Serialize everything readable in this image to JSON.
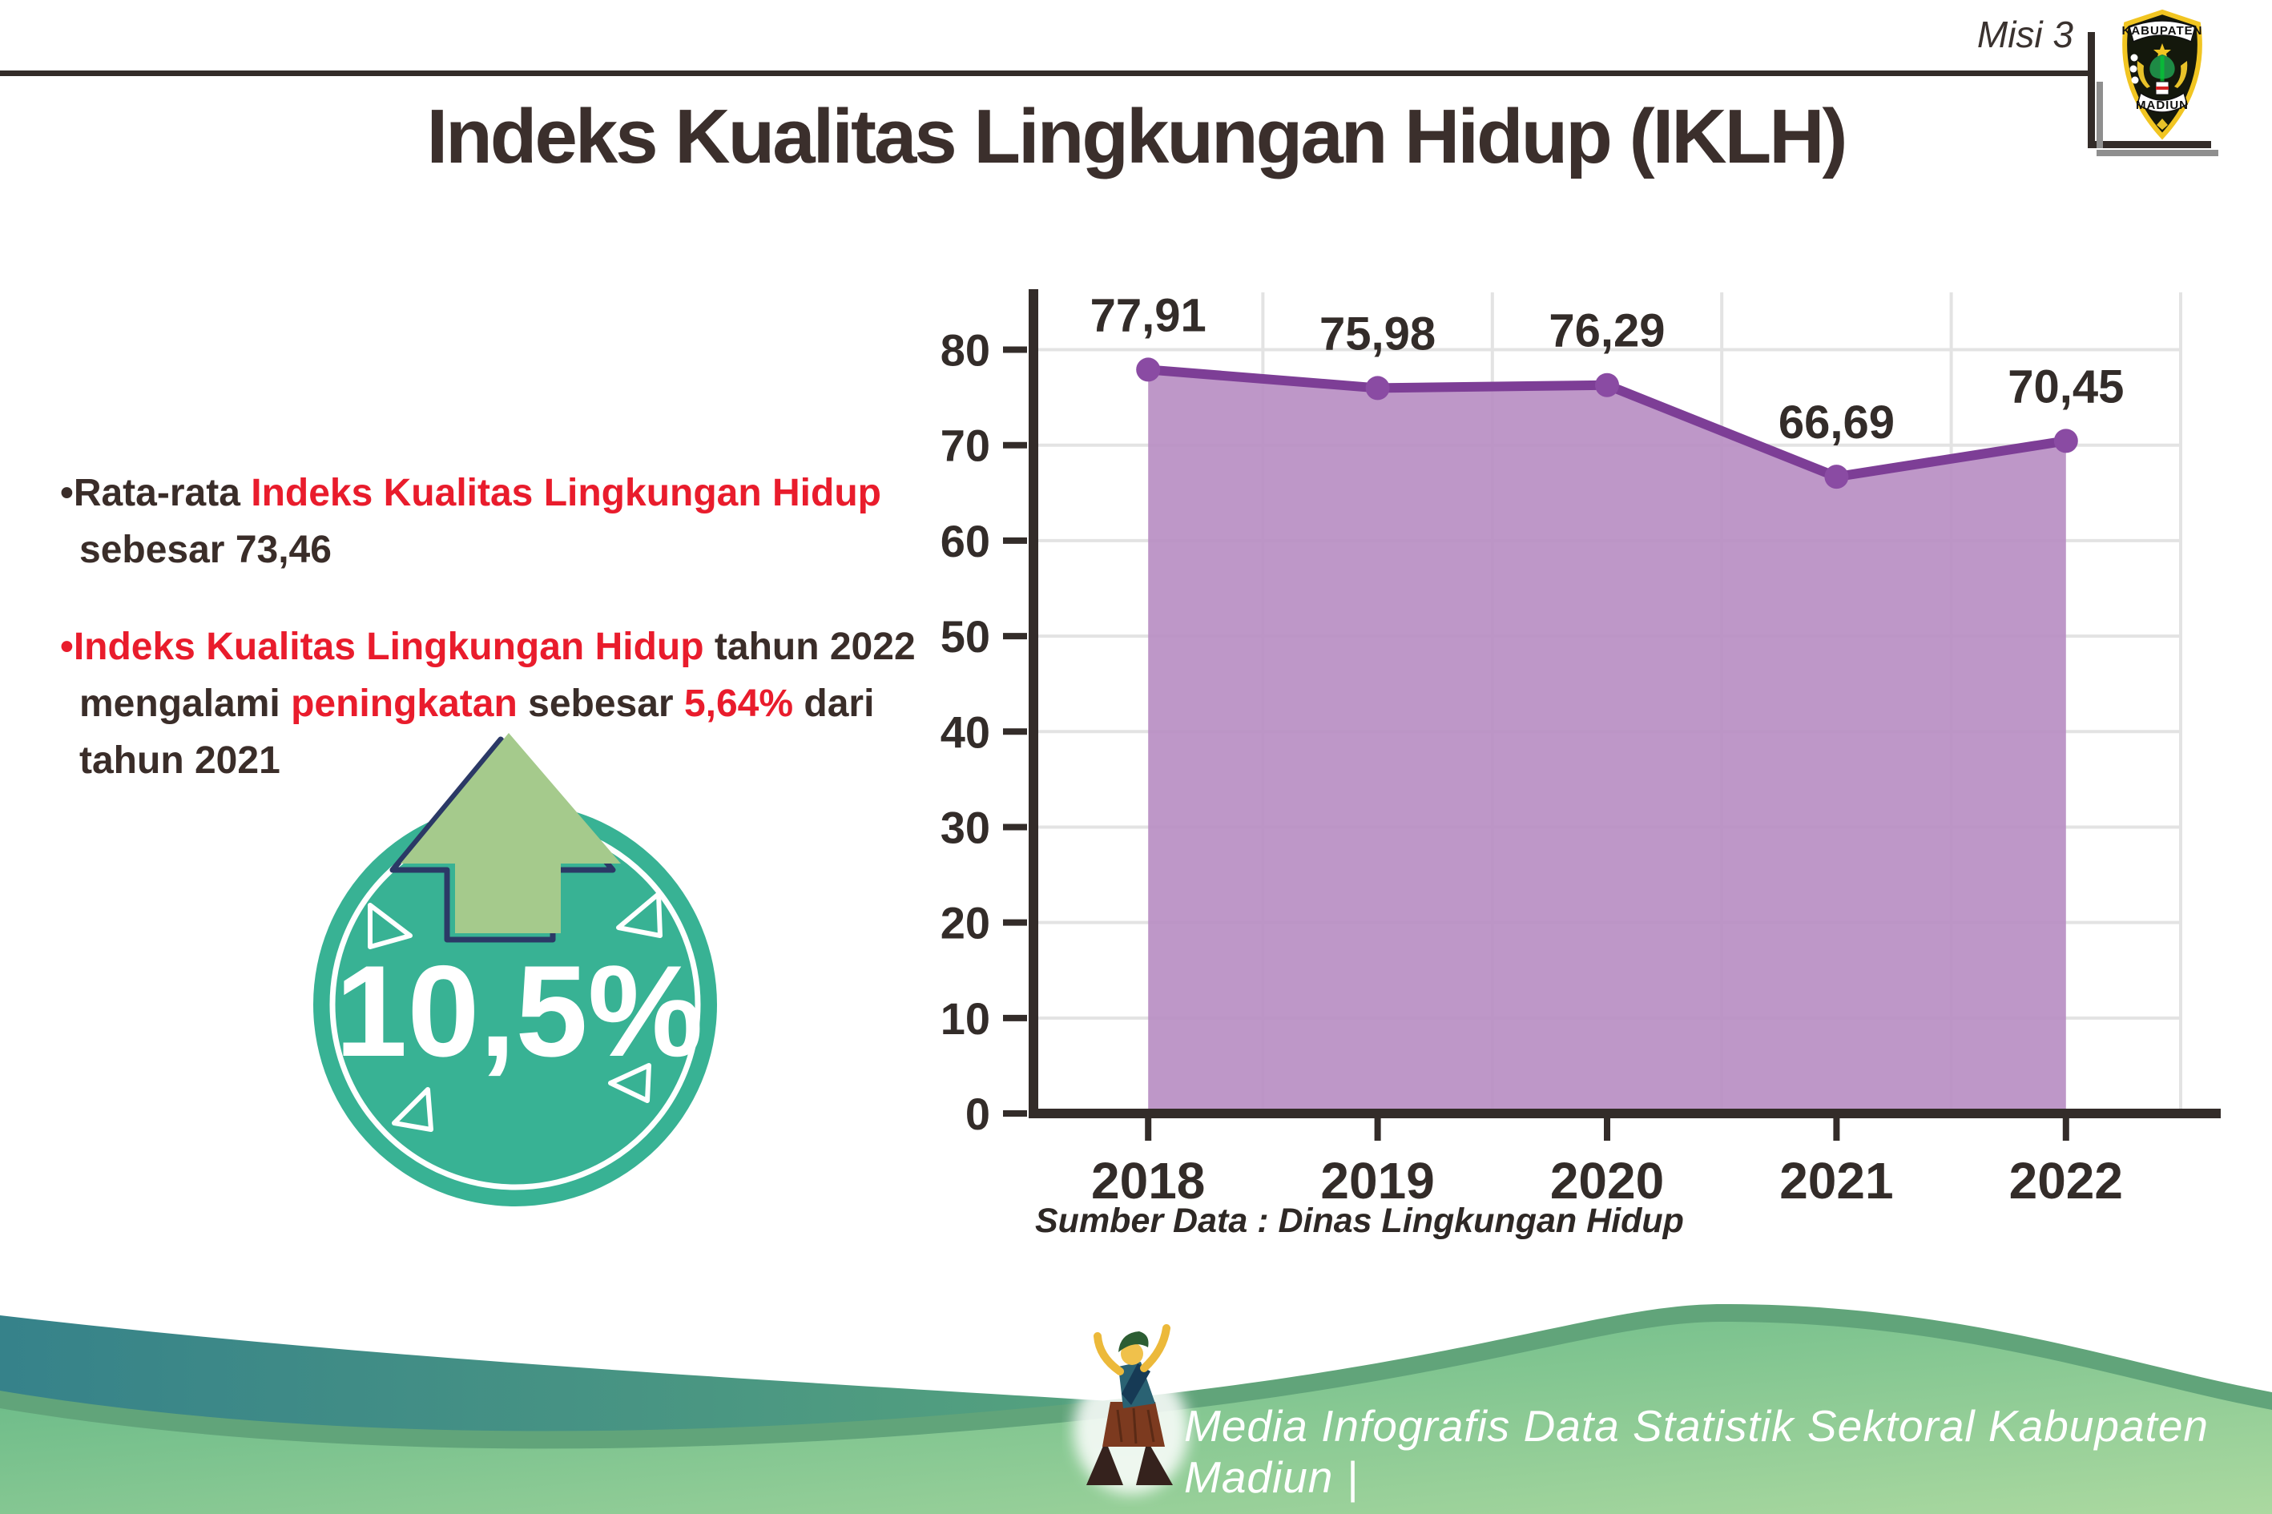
{
  "header": {
    "mission": "Misi 3",
    "title": "Indeks Kualitas Lingkungan Hidup (IKLH)"
  },
  "logo": {
    "top": "KABUPATEN",
    "bottom": "MADIUN"
  },
  "bullets": {
    "b1": {
      "bullet": "•",
      "pre": "Rata-rata ",
      "red": "Indeks Kualitas Lingkungan Hidup",
      "line2": "sebesar 73,46"
    },
    "b2": {
      "bullet": "•",
      "red1": "Indeks Kualitas Lingkungan Hidup",
      "post1": " tahun 2022",
      "l2a": "mengalami ",
      "l2b": "peningkatan",
      "l2c": " sebesar ",
      "l2d": "5,64%",
      "l2e": " dari",
      "line3": "tahun 2021"
    }
  },
  "badge": {
    "value": "10,5%"
  },
  "chart_data": {
    "type": "area",
    "title": "Indeks Kualitas Lingkungan Hidup (IKLH)",
    "categories": [
      "2018",
      "2019",
      "2020",
      "2021",
      "2022"
    ],
    "values": [
      77.91,
      75.98,
      76.29,
      66.69,
      70.45
    ],
    "value_labels": [
      "77,91",
      "75,98",
      "76,29",
      "66,69",
      "70,45"
    ],
    "series_name": "IKLH",
    "xlabel": "",
    "ylabel": "",
    "ylim": [
      0,
      86
    ],
    "yticks": [
      0,
      10,
      20,
      30,
      40,
      50,
      60,
      70,
      80
    ],
    "grid": true,
    "legend": "none",
    "source_note": "Sumber Data : Dinas Lingkungan Hidup"
  },
  "source": "Sumber Data : Dinas Lingkungan Hidup",
  "footer": {
    "text": "Media Infografis Data Statistik Sektoral Kabupaten Madiun |"
  },
  "colors": {
    "text_dark": "#3a2d29",
    "accent_red": "#e91c2c",
    "chart_line": "#7d3e96",
    "chart_marker": "#8a4ba3",
    "chart_fill": "#b98fc4",
    "grid": "#e3e3e3",
    "axis": "#332c29",
    "badge_teal": "#38b294",
    "arrow_green": "#a5ca8c",
    "arrow_outline": "#2b3966",
    "wave_teal_1": "#36828a",
    "wave_teal_2": "#5aa77c",
    "wave_green_1": "#5fb584",
    "wave_green_2": "#abd9a0",
    "wave_edge": "#61a47a"
  }
}
